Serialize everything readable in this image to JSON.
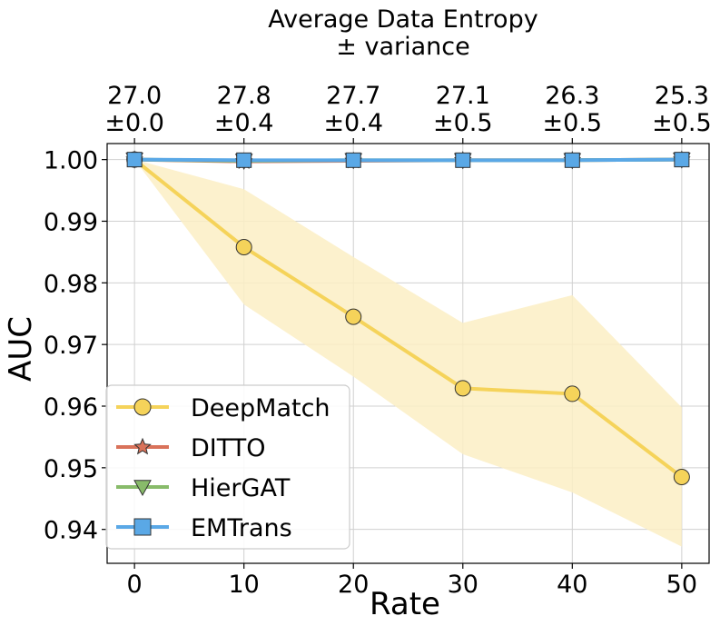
{
  "chart_data": {
    "type": "line",
    "title": "Average Data Entropy",
    "subtitle": "± variance",
    "xlabel": "Rate",
    "ylabel": "AUC",
    "x": [
      0,
      10,
      20,
      30,
      40,
      50
    ],
    "xticks": [
      "0",
      "10",
      "20",
      "30",
      "40",
      "50"
    ],
    "xlim": [
      -2.5,
      52.5
    ],
    "ylim": [
      0.9345,
      1.0026
    ],
    "yticks": [
      "0.94",
      "0.95",
      "0.96",
      "0.97",
      "0.98",
      "0.99",
      "1.00"
    ],
    "ytick_values": [
      0.94,
      0.95,
      0.96,
      0.97,
      0.98,
      0.99,
      1.0
    ],
    "grid": true,
    "legend_position": "lower-left",
    "top_axis_ticks": [
      {
        "value": "27.0",
        "variance": "±0.0"
      },
      {
        "value": "27.8",
        "variance": "±0.4"
      },
      {
        "value": "27.7",
        "variance": "±0.4"
      },
      {
        "value": "27.1",
        "variance": "±0.5"
      },
      {
        "value": "26.3",
        "variance": "±0.5"
      },
      {
        "value": "25.3",
        "variance": "±0.5"
      }
    ],
    "series": [
      {
        "name": "DeepMatch",
        "values": [
          1.0,
          0.9858,
          0.9745,
          0.9629,
          0.962,
          0.9485
        ],
        "lower": [
          1.0,
          0.9765,
          0.9648,
          0.9522,
          0.946,
          0.9372
        ],
        "upper": [
          1.0,
          0.9952,
          0.9842,
          0.9735,
          0.978,
          0.9598
        ],
        "color": "#f5d35a",
        "band_color": "#fbefc4",
        "marker": "circle"
      },
      {
        "name": "DITTO",
        "values": [
          1.0,
          0.9997,
          0.9998,
          0.9999,
          0.9999,
          1.0
        ],
        "color": "#d9725a",
        "marker": "star"
      },
      {
        "name": "HierGAT",
        "values": [
          1.0,
          0.9998,
          0.9999,
          0.9999,
          0.9999,
          1.0
        ],
        "color": "#88bb6a",
        "marker": "triangle-down"
      },
      {
        "name": "EMTrans",
        "values": [
          1.0,
          0.9999,
          0.9999,
          0.9999,
          0.9999,
          1.0
        ],
        "color": "#5aa8e6",
        "marker_fill": "#5aa8e6",
        "marker": "square"
      }
    ]
  }
}
